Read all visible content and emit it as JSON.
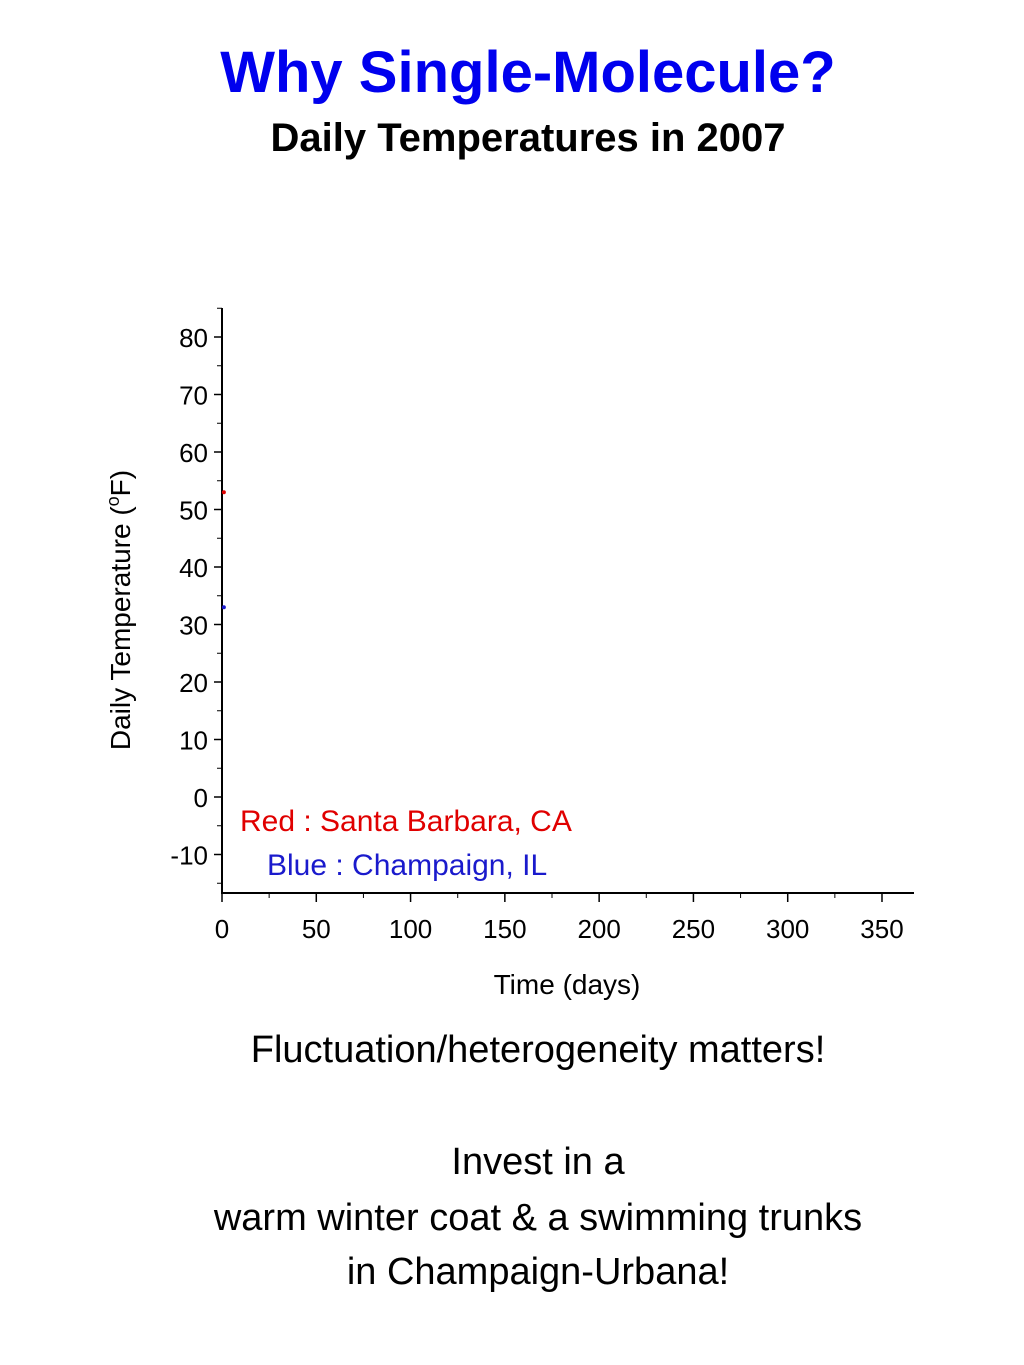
{
  "slide": {
    "title": "Why Single-Molecule?",
    "subtitle": "Daily Temperatures in 2007"
  },
  "chart_data": {
    "type": "scatter",
    "xlabel": "Time (days)",
    "ylabel_main": "Daily Temperature (",
    "ylabel_sup": "o",
    "ylabel_end": "F)",
    "xlim": [
      0,
      365
    ],
    "ylim": [
      -17,
      90
    ],
    "xticks": [
      0,
      50,
      100,
      150,
      200,
      250,
      300,
      350
    ],
    "yticks": [
      -10,
      0,
      10,
      20,
      30,
      40,
      50,
      60,
      70,
      80
    ],
    "grid": false,
    "annotations": [
      {
        "text": "Red : Santa Barbara, CA",
        "color": "#e00000"
      },
      {
        "text": "Blue : Champaign, IL",
        "color": "#1a1acc"
      }
    ],
    "series": [
      {
        "color": "#e00000",
        "x": [
          1
        ],
        "y": [
          53
        ]
      },
      {
        "color": "#1a1acc",
        "x": [
          1
        ],
        "y": [
          33
        ]
      }
    ]
  },
  "body": {
    "line1": "Fluctuation/heterogeneity matters!",
    "line2": "Invest in a",
    "line3": "warm winter coat & a swimming trunks",
    "line4": "in Champaign-Urbana!"
  }
}
